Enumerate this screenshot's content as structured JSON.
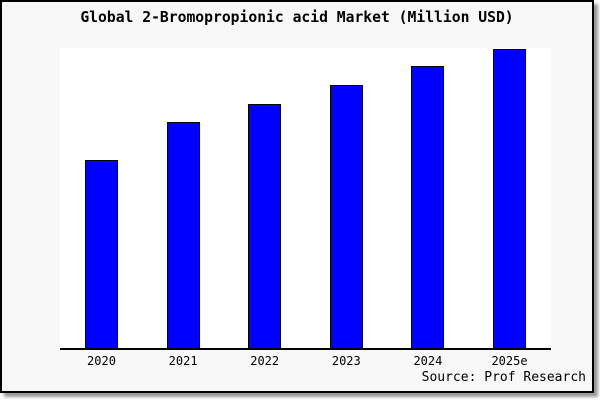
{
  "window": {
    "background_color": "#f8f8f8",
    "frame_border_color": "#000000",
    "shadow_color": "#999999"
  },
  "chart_data": {
    "type": "bar",
    "title": "Global 2-Bromopropionic acid Market (Million USD)",
    "categories": [
      "2020",
      "2021",
      "2022",
      "2023",
      "2024",
      "2025e"
    ],
    "values": [
      63.0,
      75.5,
      81.5,
      87.9,
      94.2,
      100
    ],
    "values_note": "relative bar heights; no y-axis scale shown in image, 2025e bar = 100",
    "xlabel": "",
    "ylabel": "",
    "ylim": [
      0,
      101
    ],
    "grid": false,
    "legend": null,
    "y_axis_labels_visible": false,
    "unit": "Million USD",
    "bar_color": "#0000fe",
    "bar_border_color": "#000000",
    "plot_background": "#ffffff",
    "axis_color": "#000000",
    "source": "Source: Prof Research"
  }
}
